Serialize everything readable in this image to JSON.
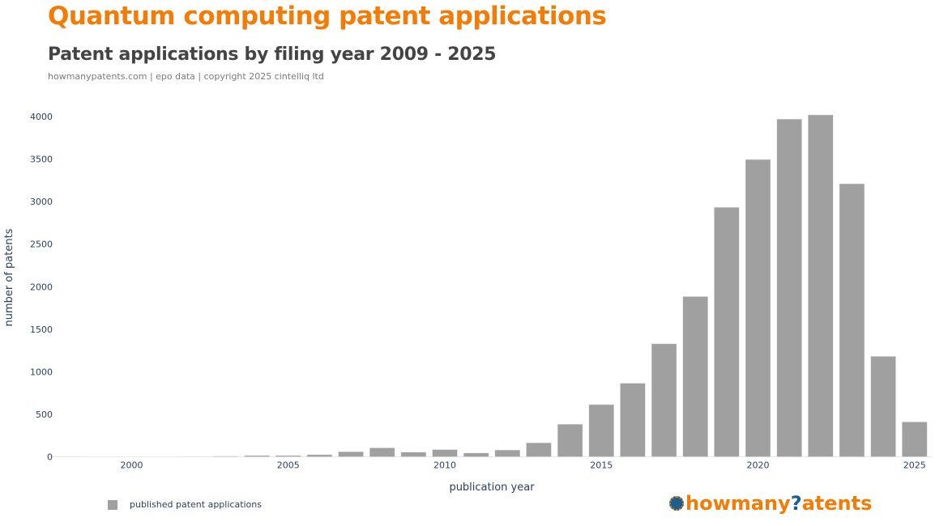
{
  "header": {
    "title": "Quantum computing patent applications",
    "subtitle": "Patent applications by filing year 2009 - 2025",
    "source": "howmanypatents.com | epo data | copyright 2025 cintelliq ltd"
  },
  "legend": {
    "label": "published patent applications"
  },
  "logo": {
    "part1": "howmany",
    "part2": "?",
    "part3": "atents"
  },
  "colors": {
    "bar": "#a0a0a0",
    "title": "#f47b06",
    "logo_blue": "#1a5f8e",
    "axis_text": "#2a3f5f"
  },
  "chart_data": {
    "type": "bar",
    "title": "Quantum computing patent applications",
    "subtitle": "Patent applications by filing year 2009 - 2025",
    "xlabel": "publication year",
    "ylabel": "number of patents",
    "x": [
      1998,
      2002,
      2003,
      2004,
      2005,
      2006,
      2007,
      2008,
      2009,
      2010,
      2011,
      2012,
      2013,
      2014,
      2015,
      2016,
      2017,
      2018,
      2019,
      2020,
      2021,
      2022,
      2023,
      2024,
      2025
    ],
    "series": [
      {
        "name": "published patent applications",
        "values": [
          2,
          3,
          8,
          15,
          15,
          25,
          60,
          105,
          55,
          85,
          45,
          80,
          165,
          383,
          614,
          865,
          1329,
          1884,
          2933,
          3495,
          3970,
          4019,
          3210,
          1181,
          410
        ]
      }
    ],
    "xlim": [
      1997.4,
      2025.55
    ],
    "ylim": [
      0,
      4000
    ],
    "xticks": [
      "2000",
      "2005",
      "2010",
      "2015",
      "2020",
      "2025"
    ],
    "xtick_values": [
      2000,
      2005,
      2010,
      2015,
      2020,
      2025
    ],
    "yticks": [
      "0",
      "500",
      "1000",
      "1500",
      "2000",
      "2500",
      "3000",
      "3500",
      "4000"
    ],
    "ytick_values": [
      0,
      500,
      1000,
      1500,
      2000,
      2500,
      3000,
      3500,
      4000
    ],
    "grid": false,
    "legend_position": "bottom-left"
  }
}
